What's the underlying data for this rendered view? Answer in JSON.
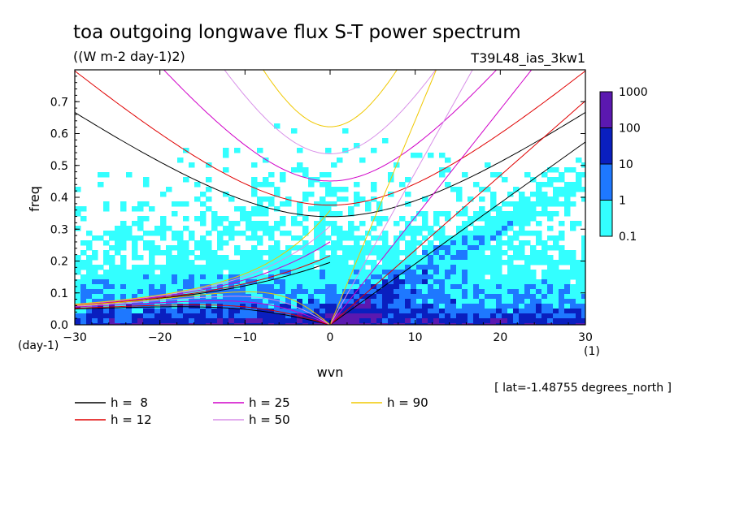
{
  "chart_data": {
    "type": "heatmap",
    "title": "toa outgoing longwave flux S-T power spectrum",
    "subtitle": "((W m-2 day-1)2)",
    "run_label": "T39L48_ias_3kw1",
    "xlabel": "wvn",
    "ylabel": "freq",
    "x_unit": "(1)",
    "y_unit": "(day-1)",
    "xlim": [
      -30,
      30
    ],
    "ylim": [
      0,
      0.8
    ],
    "xticks": [
      "−30",
      "−20",
      "−10",
      "0",
      "10",
      "20",
      "30"
    ],
    "yticks": [
      "0.0",
      "0.1",
      "0.2",
      "0.3",
      "0.4",
      "0.5",
      "0.6",
      "0.7"
    ],
    "xtick_values": [
      -30,
      -20,
      -10,
      0,
      10,
      20,
      30
    ],
    "ytick_values": [
      0,
      0.1,
      0.2,
      0.3,
      0.4,
      0.5,
      0.6,
      0.7
    ],
    "annotation": "[ lat=-1.48755 degrees_north ]",
    "colorbar": {
      "labels": [
        "0.1",
        "1",
        "10",
        "100",
        "1000"
      ],
      "levels": [
        0.1,
        1,
        10,
        100,
        1000
      ],
      "colors": [
        "#33ffff",
        "#1e78ff",
        "#0a1fbf",
        "#5b18b0"
      ]
    },
    "series": [
      {
        "name": "h =  8",
        "h": 8,
        "color": "#000000"
      },
      {
        "name": "h = 12",
        "h": 12,
        "color": "#e00000"
      },
      {
        "name": "h = 25",
        "h": 25,
        "color": "#d000c8"
      },
      {
        "name": "h = 50",
        "h": 50,
        "color": "#d890e8"
      },
      {
        "name": "h = 90",
        "h": 90,
        "color": "#f0c800"
      }
    ]
  }
}
